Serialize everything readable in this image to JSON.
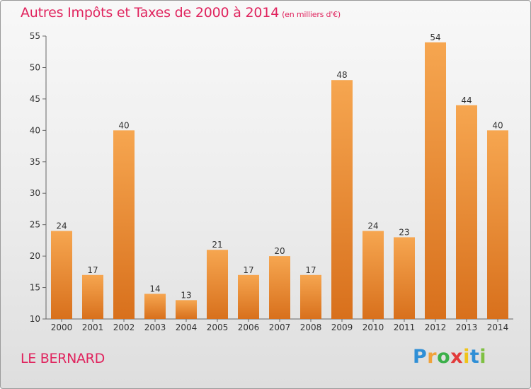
{
  "chart_data": {
    "type": "bar",
    "title": "Autres Impôts et Taxes de 2000 à 2014",
    "unit": "(en milliers d'€)",
    "categories": [
      "2000",
      "2001",
      "2002",
      "2003",
      "2004",
      "2005",
      "2006",
      "2007",
      "2008",
      "2009",
      "2010",
      "2011",
      "2012",
      "2013",
      "2014"
    ],
    "values": [
      24,
      17,
      40,
      14,
      13,
      21,
      17,
      20,
      17,
      48,
      24,
      23,
      54,
      44,
      40
    ],
    "ylim": [
      10,
      55
    ],
    "yticks": [
      10,
      15,
      20,
      25,
      30,
      35,
      40,
      45,
      50,
      55
    ],
    "grid": false,
    "bar_color_top": "#f6a650",
    "bar_color_bottom": "#d8701c"
  },
  "location": "LE BERNARD",
  "logo": {
    "letters": [
      "P",
      "r",
      "o",
      "x",
      "i",
      "t",
      "i"
    ],
    "colors": [
      "#2f8fd6",
      "#f0a23a",
      "#3bb04a",
      "#e23b3b",
      "#f0c419",
      "#2f8fd6",
      "#7ec042"
    ]
  },
  "colors": {
    "title": "#e0245e",
    "axis": "#666666",
    "text": "#333333"
  }
}
